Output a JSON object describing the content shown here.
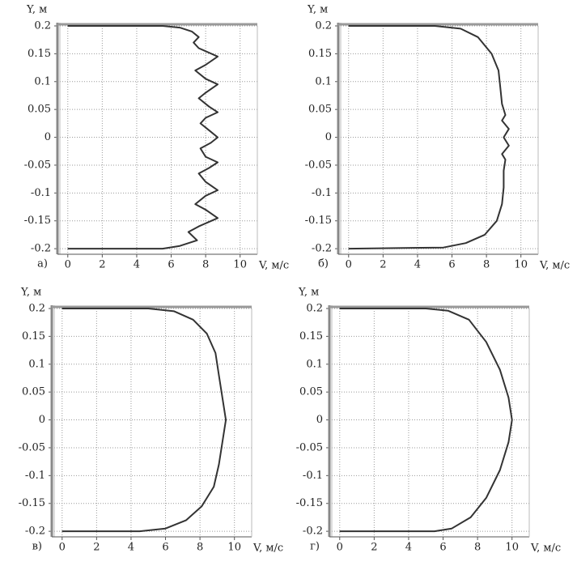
{
  "chart_data": [
    {
      "type": "line",
      "label": "а)",
      "ylabel": "Y, м",
      "xlabel": "V, м/с",
      "color": "#333333",
      "grid": true,
      "xlim": [
        -0.6,
        11
      ],
      "ylim": [
        -0.21,
        0.2
      ],
      "xticks": [
        0,
        2,
        4,
        6,
        8,
        10
      ],
      "yticks": [
        0.2,
        0.15,
        0.1,
        0.05,
        0,
        -0.05,
        -0.1,
        -0.15,
        -0.2
      ],
      "x": [
        0,
        5.5,
        6.5,
        7.2,
        7.6,
        7.3,
        7.6,
        8.7,
        8.0,
        7.4,
        8.0,
        8.7,
        8.0,
        7.6,
        8.2,
        8.7,
        8.0,
        7.7,
        8.3,
        8.7,
        8.3,
        7.7,
        8.0,
        8.7,
        8.2,
        7.6,
        8.0,
        8.7,
        8.0,
        7.4,
        8.0,
        8.7,
        7.6,
        7.0,
        7.5,
        6.5,
        5.5,
        0
      ],
      "values": [
        0.2,
        0.2,
        0.197,
        0.19,
        0.18,
        0.17,
        0.16,
        0.145,
        0.13,
        0.12,
        0.105,
        0.095,
        0.08,
        0.07,
        0.055,
        0.045,
        0.035,
        0.025,
        0.01,
        0,
        -0.01,
        -0.02,
        -0.035,
        -0.045,
        -0.055,
        -0.065,
        -0.08,
        -0.095,
        -0.105,
        -0.12,
        -0.13,
        -0.145,
        -0.16,
        -0.17,
        -0.185,
        -0.195,
        -0.2,
        -0.2
      ]
    },
    {
      "type": "line",
      "label": "б)",
      "ylabel": "Y, м",
      "xlabel": "V, м/с",
      "color": "#333333",
      "grid": true,
      "xlim": [
        -0.6,
        11
      ],
      "ylim": [
        -0.21,
        0.2
      ],
      "xticks": [
        0,
        2,
        4,
        6,
        8,
        10
      ],
      "yticks": [
        0.2,
        0.15,
        0.1,
        0.05,
        0,
        -0.05,
        -0.1,
        -0.15,
        -0.2
      ],
      "x": [
        0,
        5,
        6.5,
        7.5,
        8.3,
        8.7,
        8.8,
        8.9,
        9.1,
        8.9,
        9.3,
        9.0,
        9.3,
        8.9,
        9.1,
        9.0,
        9.0,
        8.9,
        8.6,
        7.9,
        6.8,
        5.5,
        0
      ],
      "values": [
        0.2,
        0.2,
        0.195,
        0.18,
        0.15,
        0.12,
        0.09,
        0.06,
        0.04,
        0.03,
        0.015,
        0,
        -0.015,
        -0.03,
        -0.04,
        -0.06,
        -0.09,
        -0.12,
        -0.15,
        -0.175,
        -0.19,
        -0.198,
        -0.2
      ]
    },
    {
      "type": "line",
      "label": "в)",
      "ylabel": "Y, м",
      "xlabel": "V, м/с",
      "color": "#333333",
      "grid": true,
      "xlim": [
        -0.6,
        11
      ],
      "ylim": [
        -0.21,
        0.2
      ],
      "xticks": [
        0,
        2,
        4,
        6,
        8,
        10
      ],
      "yticks": [
        0.2,
        0.15,
        0.1,
        0.05,
        0,
        -0.05,
        -0.1,
        -0.15,
        -0.2
      ],
      "x": [
        0,
        5,
        6.5,
        7.6,
        8.4,
        8.9,
        9.1,
        9.3,
        9.5,
        9.3,
        9.1,
        8.8,
        8.1,
        7.2,
        6.0,
        4.5,
        0
      ],
      "values": [
        0.2,
        0.2,
        0.195,
        0.18,
        0.155,
        0.12,
        0.08,
        0.04,
        0,
        -0.04,
        -0.08,
        -0.12,
        -0.155,
        -0.18,
        -0.195,
        -0.2,
        -0.2
      ]
    },
    {
      "type": "line",
      "label": "г)",
      "ylabel": "Y, м",
      "xlabel": "V, м/с",
      "color": "#333333",
      "grid": true,
      "xlim": [
        -0.6,
        11
      ],
      "ylim": [
        -0.21,
        0.2
      ],
      "xticks": [
        0,
        2,
        4,
        6,
        8,
        10
      ],
      "yticks": [
        0.2,
        0.15,
        0.1,
        0.05,
        0,
        -0.05,
        -0.1,
        -0.15,
        -0.2
      ],
      "x": [
        0,
        5,
        6.3,
        7.5,
        8.5,
        9.3,
        9.8,
        10,
        9.8,
        9.3,
        8.5,
        7.6,
        6.5,
        5.5,
        0
      ],
      "values": [
        0.2,
        0.2,
        0.196,
        0.18,
        0.14,
        0.09,
        0.04,
        0,
        -0.04,
        -0.09,
        -0.14,
        -0.175,
        -0.195,
        -0.2,
        -0.2
      ]
    }
  ]
}
